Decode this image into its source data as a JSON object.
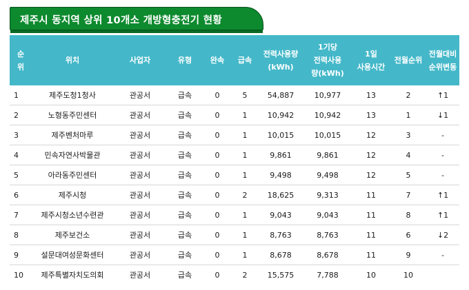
{
  "title": "제주시 동지역 상위 10개소 개방형충전기 현황",
  "headers": {
    "no": [
      "순",
      "위"
    ],
    "location": "위치",
    "operator": "사업자",
    "type": "유형",
    "slow": "완속",
    "fast": "급속",
    "power_usage": [
      "전력사용량",
      "(kWh)"
    ],
    "per_unit": [
      "1기당",
      "전력사용",
      "량(kWh)"
    ],
    "daily_hours": [
      "1일",
      "사용시간"
    ],
    "prev_rank": "전월순위",
    "rank_change": [
      "전월대비",
      "순위변동"
    ]
  },
  "rows": [
    {
      "no": "1",
      "location": "제주도청1청사",
      "operator": "관공서",
      "type": "급속",
      "slow": "0",
      "fast": "5",
      "power": "54,887",
      "per_unit": "10,977",
      "hours": "13",
      "prev_rank": "2",
      "change": "↑1"
    },
    {
      "no": "2",
      "location": "노형동주민센터",
      "operator": "관공서",
      "type": "급속",
      "slow": "0",
      "fast": "1",
      "power": "10,942",
      "per_unit": "10,942",
      "hours": "13",
      "prev_rank": "1",
      "change": "↓1"
    },
    {
      "no": "3",
      "location": "제주벤처마루",
      "operator": "관공서",
      "type": "급속",
      "slow": "0",
      "fast": "1",
      "power": "10,015",
      "per_unit": "10,015",
      "hours": "12",
      "prev_rank": "3",
      "change": "-"
    },
    {
      "no": "4",
      "location": "민속자연사박물관",
      "operator": "관공서",
      "type": "급속",
      "slow": "0",
      "fast": "1",
      "power": "9,861",
      "per_unit": "9,861",
      "hours": "12",
      "prev_rank": "4",
      "change": "-"
    },
    {
      "no": "5",
      "location": "아라동주민센터",
      "operator": "관공서",
      "type": "급속",
      "slow": "0",
      "fast": "1",
      "power": "9,498",
      "per_unit": "9,498",
      "hours": "12",
      "prev_rank": "5",
      "change": "-"
    },
    {
      "no": "6",
      "location": "제주시청",
      "operator": "관공서",
      "type": "급속",
      "slow": "0",
      "fast": "2",
      "power": "18,625",
      "per_unit": "9,313",
      "hours": "11",
      "prev_rank": "7",
      "change": "↑1"
    },
    {
      "no": "7",
      "location": "제주시청소년수련관",
      "operator": "관공서",
      "type": "급속",
      "slow": "0",
      "fast": "1",
      "power": "9,043",
      "per_unit": "9,043",
      "hours": "11",
      "prev_rank": "8",
      "change": "↑1"
    },
    {
      "no": "8",
      "location": "제주보건소",
      "operator": "관공서",
      "type": "급속",
      "slow": "0",
      "fast": "1",
      "power": "8,763",
      "per_unit": "8,763",
      "hours": "11",
      "prev_rank": "6",
      "change": "↓2"
    },
    {
      "no": "9",
      "location": "설문대여성문화센터",
      "operator": "관공서",
      "type": "급속",
      "slow": "0",
      "fast": "1",
      "power": "8,678",
      "per_unit": "8,678",
      "hours": "11",
      "prev_rank": "9",
      "change": "-"
    },
    {
      "no": "10",
      "location": "제주특별자치도의회",
      "operator": "관공서",
      "type": "급속",
      "slow": "0",
      "fast": "2",
      "power": "15,575",
      "per_unit": "7,788",
      "hours": "10",
      "prev_rank": "10",
      "change": ""
    }
  ]
}
